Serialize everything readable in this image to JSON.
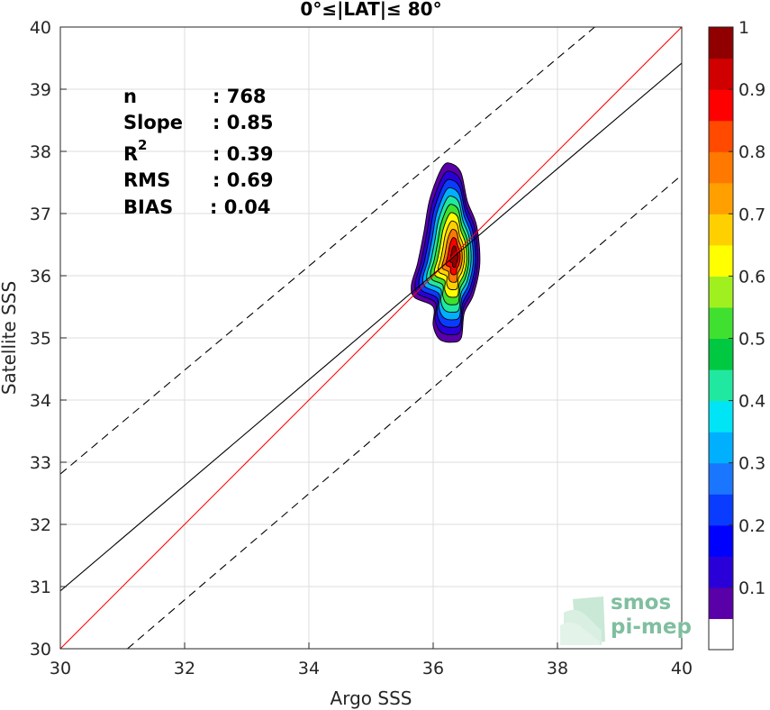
{
  "chart_data": {
    "type": "contour",
    "title": "0°≤|LAT|≤ 80°",
    "xlabel": "Argo SSS",
    "ylabel": "Satellite SSS",
    "xlim": [
      30,
      40
    ],
    "ylim": [
      30,
      40
    ],
    "xticks": [
      30,
      32,
      34,
      36,
      38,
      40
    ],
    "yticks": [
      30,
      31,
      32,
      33,
      34,
      35,
      36,
      37,
      38,
      39,
      40
    ],
    "grid": true,
    "stats": [
      {
        "label": "n",
        "value": ": 768"
      },
      {
        "label": "Slope",
        "value": ": 0.85"
      },
      {
        "label": "R",
        "sup": "2",
        "value": ": 0.39"
      },
      {
        "label": "RMS",
        "value": ": 0.69"
      },
      {
        "label": "BIAS",
        "value": ": 0.04"
      }
    ],
    "lines": [
      {
        "kind": "identity",
        "color": "#ff0000",
        "style": "solid",
        "x": [
          30,
          40
        ],
        "y": [
          30,
          40
        ]
      },
      {
        "kind": "regression",
        "color": "#000000",
        "style": "solid",
        "x": [
          30,
          40
        ],
        "y": [
          30.93,
          39.42
        ]
      },
      {
        "kind": "upper-bound",
        "color": "#000000",
        "style": "dashed",
        "x": [
          30,
          38.6
        ],
        "y": [
          32.81,
          40
        ]
      },
      {
        "kind": "lower-bound",
        "color": "#000000",
        "style": "dashed",
        "x": [
          31.08,
          40
        ],
        "y": [
          30,
          37.62
        ]
      }
    ],
    "density": {
      "center_x": 36.35,
      "center_y": 36.3,
      "levels": [
        0.05,
        0.1,
        0.2,
        0.3,
        0.4,
        0.5,
        0.6,
        0.7,
        0.8,
        0.9,
        0.95
      ],
      "outer_contour": [
        [
          35.95,
          37.25
        ],
        [
          36.15,
          37.75
        ],
        [
          36.3,
          37.8
        ],
        [
          36.45,
          37.65
        ],
        [
          36.55,
          37.2
        ],
        [
          36.7,
          36.8
        ],
        [
          36.75,
          36.2
        ],
        [
          36.65,
          35.7
        ],
        [
          36.5,
          35.4
        ],
        [
          36.45,
          35.0
        ],
        [
          36.3,
          34.93
        ],
        [
          36.1,
          34.98
        ],
        [
          36.0,
          35.2
        ],
        [
          36.0,
          35.5
        ],
        [
          35.7,
          35.65
        ],
        [
          35.65,
          35.85
        ],
        [
          35.75,
          36.2
        ],
        [
          35.85,
          36.7
        ]
      ]
    },
    "colorbar": {
      "ticks": [
        0.1,
        0.2,
        0.3,
        0.4,
        0.5,
        0.6,
        0.7,
        0.8,
        0.9,
        1
      ],
      "tick_labels": [
        "0.1",
        "0.2",
        "0.3",
        "0.4",
        "0.5",
        "0.6",
        "0.7",
        "0.8",
        "0.9",
        "1"
      ],
      "colors": [
        "#ffffff",
        "#5a00a8",
        "#2a00d8",
        "#0000ff",
        "#0a3cff",
        "#1a75ff",
        "#00b0ff",
        "#00e5f5",
        "#20e8a0",
        "#00c840",
        "#40e030",
        "#a0f020",
        "#ffff00",
        "#ffd000",
        "#ffa000",
        "#ff7800",
        "#ff4a00",
        "#ff0000",
        "#d00000",
        "#900000"
      ]
    }
  },
  "logo": {
    "line1": "smos",
    "line2": "pi-mep"
  }
}
